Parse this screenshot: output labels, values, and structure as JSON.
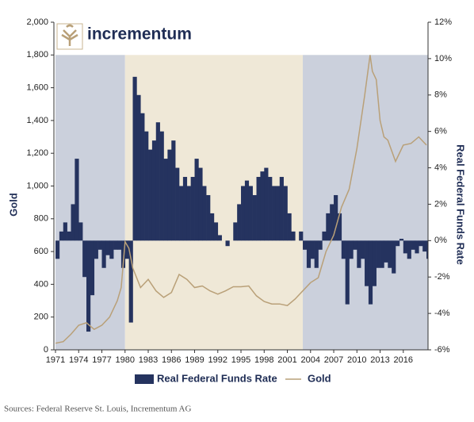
{
  "brand": "incrementum",
  "source": "Sources: Federal Reserve St. Louis, Incrementum AG",
  "chart_data": {
    "type": "area-line",
    "y_label": "Gold",
    "y2_label": "Real Federal Funds Rate",
    "xlim": [
      1971,
      2019.2
    ],
    "xticks": [
      1971,
      1974,
      1977,
      1980,
      1983,
      1986,
      1989,
      1992,
      1995,
      1998,
      2001,
      2004,
      2007,
      2010,
      2013,
      2016
    ],
    "ylim": [
      0,
      2000
    ],
    "yticks": [
      {
        "value": 0,
        "label": "0"
      },
      200,
      400,
      600,
      800,
      {
        "value": 1000,
        "label": "1,000"
      },
      {
        "value": 1200,
        "label": "1,200"
      },
      {
        "value": 1400,
        "label": "1,400"
      },
      {
        "value": 1600,
        "label": "1,600"
      },
      {
        "value": 1800,
        "label": "1,800"
      },
      {
        "value": 2000,
        "label": "2,000"
      }
    ],
    "y2lim": [
      -6,
      12
    ],
    "y2ticks": [
      {
        "value": -6,
        "label": "-6%"
      },
      {
        "value": -4,
        "label": "-4%"
      },
      {
        "value": -2,
        "label": "-2%"
      },
      {
        "value": 0,
        "label": "0%"
      },
      {
        "value": 2,
        "label": "2%"
      },
      {
        "value": 4,
        "label": "4%"
      },
      {
        "value": 6,
        "label": "6%"
      },
      {
        "value": 8,
        "label": "8%"
      },
      {
        "value": 10,
        "label": "10%"
      },
      {
        "value": 12,
        "label": "12%"
      }
    ],
    "bands": [
      {
        "x": [
          1971,
          1980
        ],
        "y": [
          0,
          1800
        ],
        "color": "#cbd0dc"
      },
      {
        "x": [
          1980,
          2003
        ],
        "y": [
          0,
          1800
        ],
        "color": "#efe8d7"
      },
      {
        "x": [
          2003,
          2019.2
        ],
        "y": [
          0,
          1800
        ],
        "color": "#cbd0dc"
      }
    ],
    "series": [
      {
        "name": "Real Federal Funds Rate",
        "kind": "area",
        "axis": "y2",
        "color": "#25335f",
        "x": [
          1971,
          1971.5,
          1972,
          1972.5,
          1973,
          1973.5,
          1974,
          1974.5,
          1975,
          1975.5,
          1976,
          1976.5,
          1977,
          1977.5,
          1978,
          1978.5,
          1979,
          1979.5,
          1980,
          1980.5,
          1981,
          1981.5,
          1982,
          1982.5,
          1983,
          1983.5,
          1984,
          1984.5,
          1985,
          1985.5,
          1986,
          1986.5,
          1987,
          1987.5,
          1988,
          1988.5,
          1989,
          1989.5,
          1990,
          1990.5,
          1991,
          1991.5,
          1992,
          1992.5,
          1993,
          1993.5,
          1994,
          1994.5,
          1995,
          1995.5,
          1996,
          1996.5,
          1997,
          1997.5,
          1998,
          1998.5,
          1999,
          1999.5,
          2000,
          2000.5,
          2001,
          2001.5,
          2002,
          2002.5,
          2003,
          2003.5,
          2004,
          2004.5,
          2005,
          2005.5,
          2006,
          2006.5,
          2007,
          2007.5,
          2008,
          2008.5,
          2009,
          2009.5,
          2010,
          2010.5,
          2011,
          2011.5,
          2012,
          2012.5,
          2013,
          2013.5,
          2014,
          2014.5,
          2015,
          2015.5,
          2016,
          2016.5,
          2017,
          2017.5,
          2018,
          2018.5,
          2019
        ],
        "values": [
          -1,
          0.5,
          1,
          0.5,
          2,
          4.5,
          1,
          -2,
          -5,
          -3,
          -1,
          -0.5,
          -1.5,
          -0.8,
          -1,
          -0.5,
          -0.5,
          -1.5,
          -1,
          -4.5,
          9,
          8,
          7,
          6,
          5,
          5.5,
          6.5,
          6,
          4.5,
          5,
          5.5,
          4,
          3,
          3.5,
          3,
          3.5,
          4.5,
          4,
          3,
          2.5,
          1.5,
          1,
          0.3,
          0,
          -0.3,
          0,
          1,
          2,
          3,
          3.3,
          3,
          2.5,
          3.5,
          3.8,
          4,
          3.5,
          3,
          3,
          3.5,
          3,
          1.5,
          0.5,
          0,
          0.5,
          -0.5,
          -1.5,
          -1,
          -1.5,
          -0.5,
          0.5,
          1.5,
          2,
          2.5,
          1.5,
          -1,
          -3.5,
          -1,
          -0.5,
          -1.5,
          -1,
          -2.5,
          -3.5,
          -2.5,
          -1.5,
          -1.5,
          -1.2,
          -1.5,
          -1.8,
          -0.3,
          0.1,
          -0.7,
          -1,
          -0.5,
          -0.7,
          -0.3,
          -0.6,
          -1
        ]
      },
      {
        "name": "Gold",
        "kind": "line",
        "axis": "y",
        "color": "#b9a078",
        "x": [
          1971,
          1972,
          1973,
          1974,
          1975,
          1976,
          1977,
          1978,
          1979,
          1979.5,
          1980,
          1980.5,
          1981,
          1982,
          1983,
          1984,
          1985,
          1986,
          1987,
          1988,
          1989,
          1990,
          1991,
          1992,
          1993,
          1994,
          1995,
          1996,
          1997,
          1998,
          1999,
          2000,
          2001,
          2002,
          2003,
          2004,
          2005,
          2006,
          2007,
          2008,
          2009,
          2010,
          2011,
          2011.7,
          2012,
          2012.5,
          2013,
          2013.5,
          2014,
          2015,
          2016,
          2017,
          2018,
          2019
        ],
        "values": [
          40,
          50,
          95,
          150,
          165,
          125,
          150,
          200,
          300,
          380,
          660,
          620,
          500,
          380,
          430,
          360,
          320,
          350,
          460,
          430,
          380,
          390,
          360,
          340,
          360,
          385,
          385,
          390,
          330,
          295,
          280,
          280,
          270,
          310,
          360,
          410,
          440,
          600,
          700,
          870,
          980,
          1230,
          1550,
          1800,
          1700,
          1650,
          1400,
          1300,
          1280,
          1150,
          1250,
          1260,
          1300,
          1250
        ]
      }
    ]
  }
}
